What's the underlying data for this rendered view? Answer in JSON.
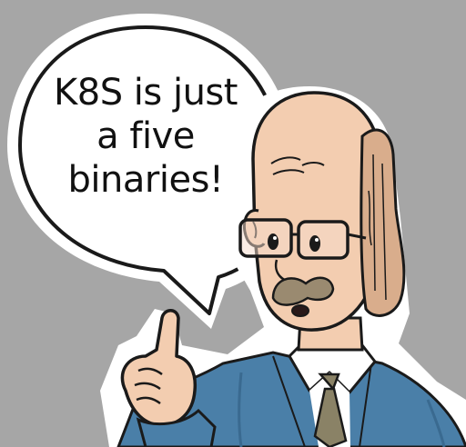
{
  "speech_bubble": {
    "lines": [
      "K8S is just",
      "a five",
      "binaries!"
    ]
  },
  "colors": {
    "background": "#a6a6a6",
    "bubble_fill": "#ffffff",
    "outline": "#1a1a1a",
    "skin": "#f3cdb0",
    "skin_shadow": "#e0ae8c",
    "hair": "#d9ad8c",
    "suit": "#4a7fa8",
    "suit_shadow": "#3a6a90",
    "shirt": "#ffffff",
    "tie": "#8a8266",
    "mustache": "#9a8a70"
  },
  "icons": {
    "character": "bald-man-with-glasses-icon",
    "gesture": "raised-index-finger-icon"
  }
}
